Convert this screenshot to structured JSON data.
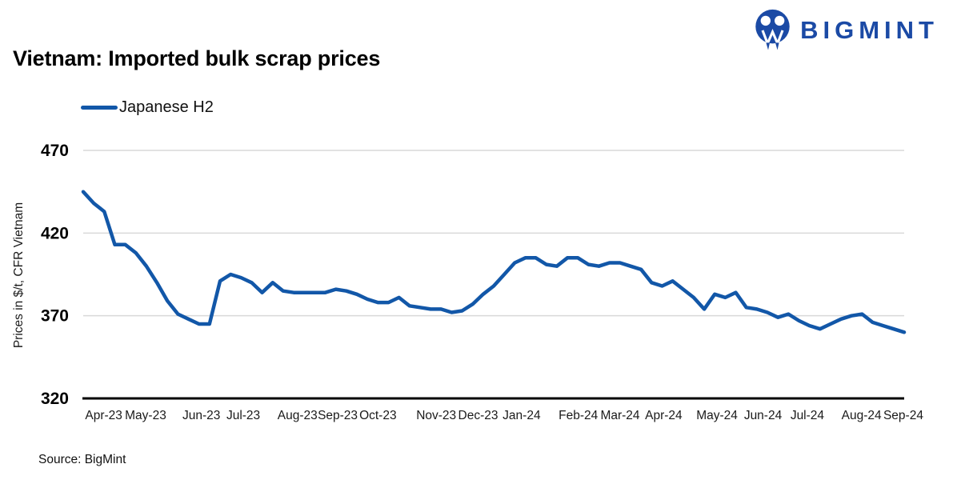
{
  "brand": {
    "name": "BIGMINT",
    "logo_color": "#1B4AA5"
  },
  "header": {
    "title": "Vietnam: Imported bulk scrap prices"
  },
  "legend": [
    {
      "label": "Japanese H2",
      "color": "#1257A8"
    }
  ],
  "source": {
    "text": "Source: BigMint"
  },
  "chart_data": {
    "type": "line",
    "title": "Vietnam: Imported bulk scrap prices",
    "xlabel": "",
    "ylabel": "Prices in $/t, CFR Vietnam",
    "ylim": [
      320,
      470
    ],
    "yticks": [
      470,
      420,
      370,
      320
    ],
    "grid": "horizontal",
    "legend_position": "top-left",
    "x_unit": "weekly prices, Apr-2023 to Sep-2024",
    "series": [
      {
        "name": "Japanese H2",
        "color": "#1257A8",
        "values": [
          445,
          438,
          433,
          413,
          413,
          408,
          400,
          390,
          379,
          371,
          368,
          365,
          365,
          391,
          395,
          393,
          390,
          384,
          390,
          385,
          384,
          384,
          384,
          384,
          386,
          385,
          383,
          380,
          378,
          378,
          381,
          376,
          375,
          374,
          374,
          372,
          373,
          377,
          383,
          388,
          395,
          402,
          405,
          405,
          401,
          400,
          405,
          405,
          401,
          400,
          402,
          402,
          400,
          398,
          390,
          388,
          391,
          386,
          381,
          374,
          383,
          381,
          384,
          375,
          374,
          372,
          369,
          371,
          367,
          364,
          362,
          365,
          368,
          370,
          371,
          366,
          364,
          362,
          360
        ]
      }
    ],
    "x_tick_labels": [
      {
        "label": "Apr-23",
        "pos": 0.025
      },
      {
        "label": "May-23",
        "pos": 0.076
      },
      {
        "label": "Jun-23",
        "pos": 0.144
      },
      {
        "label": "Jul-23",
        "pos": 0.195
      },
      {
        "label": "Aug-23",
        "pos": 0.261
      },
      {
        "label": "Sep-23",
        "pos": 0.31
      },
      {
        "label": "Oct-23",
        "pos": 0.359
      },
      {
        "label": "Nov-23",
        "pos": 0.43
      },
      {
        "label": "Dec-23",
        "pos": 0.481
      },
      {
        "label": "Jan-24",
        "pos": 0.534
      },
      {
        "label": "Feb-24",
        "pos": 0.603
      },
      {
        "label": "Mar-24",
        "pos": 0.654
      },
      {
        "label": "Apr-24",
        "pos": 0.707
      },
      {
        "label": "May-24",
        "pos": 0.772
      },
      {
        "label": "Jun-24",
        "pos": 0.828
      },
      {
        "label": "Jul-24",
        "pos": 0.882
      },
      {
        "label": "Aug-24",
        "pos": 0.948
      },
      {
        "label": "Sep-24",
        "pos": 0.999
      }
    ]
  }
}
